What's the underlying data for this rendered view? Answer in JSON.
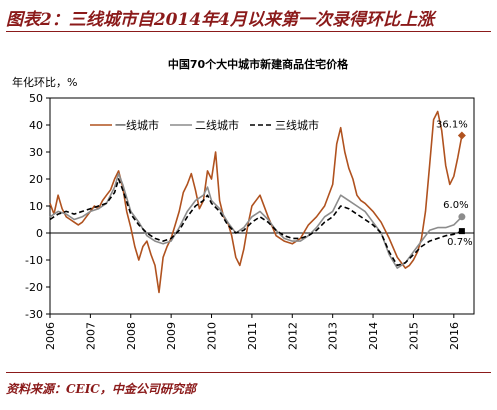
{
  "figure": {
    "title": "图表2：三线城市自2014年4月以来第一次录得环比上涨",
    "source": "资料来源：CEIC，中金公司研究部"
  },
  "colors": {
    "tier1": "#b0521f",
    "tier2": "#8c8c8c",
    "tier3": "#000000",
    "accent": "#8b1a1a"
  },
  "chart_data": {
    "type": "line",
    "title": "中国70个大中城市新建商品住宅价格",
    "ylabel": "年化环比，%",
    "xlabel": "",
    "ylim": [
      -30,
      50
    ],
    "yticks": [
      -30,
      -20,
      -10,
      0,
      10,
      20,
      30,
      40,
      50
    ],
    "xlim": [
      2006,
      2016.5
    ],
    "xticks": [
      "2006",
      "2007",
      "2008",
      "2009",
      "2010",
      "2011",
      "2012",
      "2013",
      "2014",
      "2015",
      "2016"
    ],
    "grid": false,
    "legend": "top-left",
    "series": [
      {
        "name": "一线城市",
        "color": "#b0521f",
        "dash": "",
        "marker": "diamond",
        "end_label": "36.1%",
        "x": [
          2006.0,
          2006.1,
          2006.2,
          2006.3,
          2006.4,
          2006.5,
          2006.6,
          2006.7,
          2006.8,
          2006.9,
          2007.0,
          2007.1,
          2007.2,
          2007.3,
          2007.4,
          2007.5,
          2007.6,
          2007.7,
          2007.8,
          2007.9,
          2008.0,
          2008.1,
          2008.2,
          2008.3,
          2008.4,
          2008.5,
          2008.6,
          2008.7,
          2008.8,
          2008.9,
          2009.0,
          2009.1,
          2009.2,
          2009.3,
          2009.4,
          2009.5,
          2009.6,
          2009.7,
          2009.8,
          2009.9,
          2010.0,
          2010.1,
          2010.2,
          2010.3,
          2010.4,
          2010.5,
          2010.6,
          2010.7,
          2010.8,
          2010.9,
          2011.0,
          2011.2,
          2011.4,
          2011.6,
          2011.8,
          2012.0,
          2012.2,
          2012.4,
          2012.6,
          2012.8,
          2013.0,
          2013.1,
          2013.2,
          2013.3,
          2013.4,
          2013.5,
          2013.6,
          2013.7,
          2013.8,
          2014.0,
          2014.2,
          2014.4,
          2014.6,
          2014.8,
          2014.9,
          2015.0,
          2015.1,
          2015.2,
          2015.3,
          2015.4,
          2015.5,
          2015.6,
          2015.7,
          2015.8,
          2015.9,
          2016.0,
          2016.1,
          2016.2
        ],
        "y": [
          11,
          7,
          14,
          9,
          6,
          5,
          4,
          3,
          4,
          6,
          8,
          10,
          9,
          12,
          14,
          16,
          20,
          23,
          17,
          8,
          2,
          -5,
          -10,
          -5,
          -3,
          -8,
          -12,
          -22,
          -9,
          -5,
          -2,
          3,
          8,
          15,
          18,
          22,
          16,
          9,
          12,
          23,
          20,
          30,
          12,
          6,
          4,
          -1,
          -9,
          -12,
          -6,
          3,
          10,
          14,
          6,
          -1,
          -3,
          -4,
          -2,
          3,
          6,
          10,
          18,
          33,
          39,
          30,
          24,
          20,
          14,
          12,
          11,
          8,
          4,
          -2,
          -9,
          -13,
          -12,
          -10,
          -7,
          -2,
          8,
          25,
          42,
          45,
          38,
          25,
          18,
          21,
          28,
          36.1
        ]
      },
      {
        "name": "二线城市",
        "color": "#8c8c8c",
        "dash": "",
        "marker": "circle",
        "end_label": "6.0%",
        "x": [
          2006.0,
          2006.2,
          2006.4,
          2006.6,
          2006.8,
          2007.0,
          2007.2,
          2007.4,
          2007.6,
          2007.7,
          2007.8,
          2008.0,
          2008.2,
          2008.4,
          2008.6,
          2008.8,
          2009.0,
          2009.2,
          2009.4,
          2009.6,
          2009.8,
          2009.9,
          2010.0,
          2010.2,
          2010.4,
          2010.6,
          2010.8,
          2011.0,
          2011.2,
          2011.4,
          2011.6,
          2011.8,
          2012.0,
          2012.2,
          2012.4,
          2012.6,
          2012.8,
          2013.0,
          2013.2,
          2013.4,
          2013.6,
          2013.8,
          2014.0,
          2014.2,
          2014.4,
          2014.6,
          2014.8,
          2015.0,
          2015.2,
          2015.4,
          2015.6,
          2015.8,
          2016.0,
          2016.2
        ],
        "y": [
          6,
          8,
          7,
          5,
          6,
          8,
          9,
          11,
          17,
          22,
          18,
          8,
          4,
          -1,
          -3,
          -4,
          -3,
          2,
          8,
          12,
          14,
          17,
          12,
          9,
          4,
          0,
          2,
          6,
          8,
          5,
          1,
          -2,
          -3,
          -3,
          -1,
          2,
          6,
          8,
          14,
          12,
          10,
          8,
          4,
          0,
          -8,
          -13,
          -11,
          -7,
          -3,
          1,
          2,
          2,
          3,
          6.0
        ]
      },
      {
        "name": "三线城市",
        "color": "#000000",
        "dash": "5,3",
        "marker": "square",
        "end_label": "0.7%",
        "x": [
          2006.0,
          2006.2,
          2006.4,
          2006.6,
          2006.8,
          2007.0,
          2007.2,
          2007.4,
          2007.6,
          2007.7,
          2007.8,
          2008.0,
          2008.2,
          2008.4,
          2008.6,
          2008.8,
          2009.0,
          2009.2,
          2009.4,
          2009.6,
          2009.8,
          2009.9,
          2010.0,
          2010.2,
          2010.4,
          2010.6,
          2010.8,
          2011.0,
          2011.2,
          2011.4,
          2011.6,
          2011.8,
          2012.0,
          2012.2,
          2012.4,
          2012.6,
          2012.8,
          2013.0,
          2013.2,
          2013.4,
          2013.6,
          2013.8,
          2014.0,
          2014.2,
          2014.4,
          2014.6,
          2014.8,
          2015.0,
          2015.2,
          2015.4,
          2015.6,
          2015.8,
          2016.0,
          2016.2
        ],
        "y": [
          5,
          7,
          8,
          7,
          8,
          9,
          10,
          11,
          15,
          20,
          16,
          7,
          3,
          0,
          -2,
          -3,
          -2,
          1,
          6,
          10,
          12,
          14,
          11,
          8,
          3,
          0,
          1,
          4,
          6,
          4,
          1,
          -1,
          -2,
          -2,
          -1,
          1,
          4,
          6,
          10,
          9,
          7,
          5,
          3,
          0,
          -7,
          -12,
          -11,
          -8,
          -5,
          -3,
          -2,
          -1,
          -0.5,
          0.7
        ]
      }
    ]
  }
}
